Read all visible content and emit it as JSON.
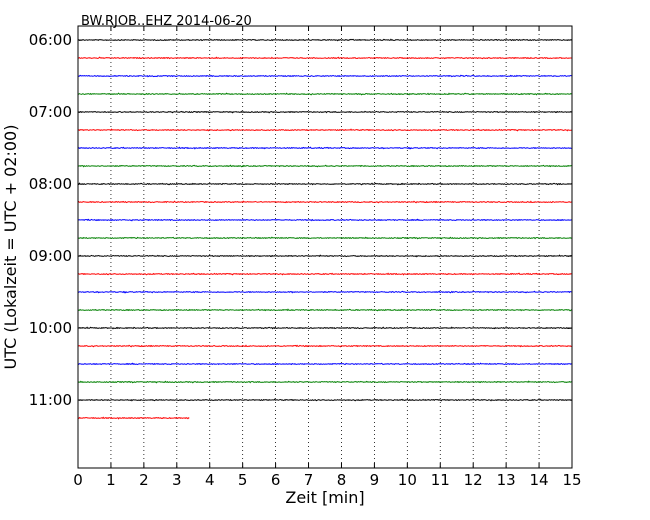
{
  "chart_data": {
    "type": "line",
    "title": "BW.RJOB..EHZ 2014-06-20",
    "xlabel": "Zeit  [min]",
    "ylabel": "UTC (Lokalzeit = UTC + 02:00)",
    "xlim": [
      0,
      15
    ],
    "x_ticks": [
      0,
      1,
      2,
      3,
      4,
      5,
      6,
      7,
      8,
      9,
      10,
      11,
      12,
      13,
      14,
      15
    ],
    "y_tick_labels": [
      "06:00",
      "07:00",
      "08:00",
      "09:00",
      "10:00",
      "11:00"
    ],
    "grid": "vertical dotted",
    "colors": [
      "#000000",
      "#ff0000",
      "#0000ff",
      "#008000"
    ],
    "traces": [
      {
        "start": "06:00",
        "color": "#000000",
        "x_end": 15
      },
      {
        "start": "06:15",
        "color": "#ff0000",
        "x_end": 15
      },
      {
        "start": "06:30",
        "color": "#0000ff",
        "x_end": 15
      },
      {
        "start": "06:45",
        "color": "#008000",
        "x_end": 15
      },
      {
        "start": "07:00",
        "color": "#000000",
        "x_end": 15
      },
      {
        "start": "07:15",
        "color": "#ff0000",
        "x_end": 15
      },
      {
        "start": "07:30",
        "color": "#0000ff",
        "x_end": 15
      },
      {
        "start": "07:45",
        "color": "#008000",
        "x_end": 15
      },
      {
        "start": "08:00",
        "color": "#000000",
        "x_end": 15
      },
      {
        "start": "08:15",
        "color": "#ff0000",
        "x_end": 15
      },
      {
        "start": "08:30",
        "color": "#0000ff",
        "x_end": 15
      },
      {
        "start": "08:45",
        "color": "#008000",
        "x_end": 15
      },
      {
        "start": "09:00",
        "color": "#000000",
        "x_end": 15
      },
      {
        "start": "09:15",
        "color": "#ff0000",
        "x_end": 15
      },
      {
        "start": "09:30",
        "color": "#0000ff",
        "x_end": 15
      },
      {
        "start": "09:45",
        "color": "#008000",
        "x_end": 15
      },
      {
        "start": "10:00",
        "color": "#000000",
        "x_end": 15
      },
      {
        "start": "10:15",
        "color": "#ff0000",
        "x_end": 15
      },
      {
        "start": "10:30",
        "color": "#0000ff",
        "x_end": 15
      },
      {
        "start": "10:45",
        "color": "#008000",
        "x_end": 15
      },
      {
        "start": "11:00",
        "color": "#000000",
        "x_end": 15
      },
      {
        "start": "11:15",
        "color": "#ff0000",
        "x_end": 3.4
      }
    ]
  }
}
